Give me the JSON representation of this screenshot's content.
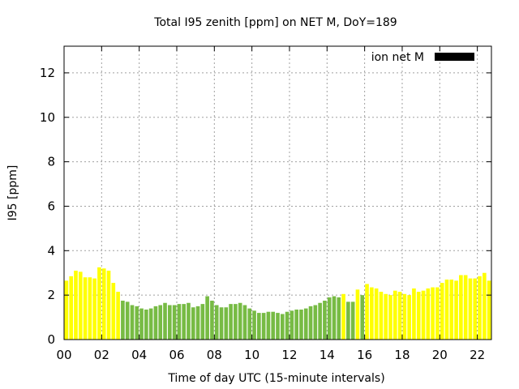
{
  "chart_data": {
    "type": "bar",
    "title": "Total I95 zenith [ppm] on NET M, DoY=189",
    "xlabel": "Time of day UTC (15-minute intervals)",
    "ylabel": "I95 [ppm]",
    "xlim": [
      0,
      22.75
    ],
    "ylim": [
      0,
      13.2
    ],
    "x_ticks": [
      0,
      2,
      4,
      6,
      8,
      10,
      12,
      14,
      16,
      18,
      20,
      22
    ],
    "x_tick_labels": [
      "00",
      "02",
      "04",
      "06",
      "08",
      "10",
      "12",
      "14",
      "16",
      "18",
      "20",
      "22"
    ],
    "y_ticks": [
      0,
      2,
      4,
      6,
      8,
      10,
      12
    ],
    "y_tick_labels": [
      "0",
      "2",
      "4",
      "6",
      "8",
      "10",
      "12"
    ],
    "grid": true,
    "legend": {
      "position": "top-right",
      "entries": [
        {
          "label": "ion net M",
          "color": "#000000"
        }
      ]
    },
    "interval_hours": 0.25,
    "colors": {
      "Y": "#ffff00",
      "G": "#77bb44"
    },
    "values": [
      2.65,
      2.85,
      3.1,
      3.05,
      2.8,
      2.8,
      2.75,
      3.25,
      3.2,
      3.1,
      2.55,
      2.15,
      1.75,
      1.7,
      1.55,
      1.5,
      1.4,
      1.35,
      1.4,
      1.5,
      1.55,
      1.65,
      1.55,
      1.55,
      1.6,
      1.6,
      1.65,
      1.45,
      1.5,
      1.6,
      1.95,
      1.75,
      1.55,
      1.45,
      1.45,
      1.6,
      1.6,
      1.65,
      1.55,
      1.4,
      1.3,
      1.2,
      1.2,
      1.25,
      1.25,
      1.2,
      1.15,
      1.25,
      1.3,
      1.35,
      1.35,
      1.4,
      1.5,
      1.55,
      1.65,
      1.75,
      1.9,
      1.95,
      1.9,
      2.05,
      1.7,
      1.7,
      2.25,
      2.0,
      2.5,
      2.35,
      2.3,
      2.15,
      2.05,
      2.0,
      2.2,
      2.15,
      2.05,
      2.0,
      2.3,
      2.15,
      2.2,
      2.3,
      2.35,
      2.35,
      2.55,
      2.7,
      2.7,
      2.65,
      2.9,
      2.9,
      2.75,
      2.75,
      2.85,
      3.0,
      2.65
    ],
    "bar_colors": "YYYYYYYYYYYYGGGGGGGGGGGGGGGGGGGGGGGGGGGGGGGGGGGGGGGGGGGGGGGYGGYGYYYYYYYYYYYYYYYYYYYYYYYYYYYY"
  }
}
